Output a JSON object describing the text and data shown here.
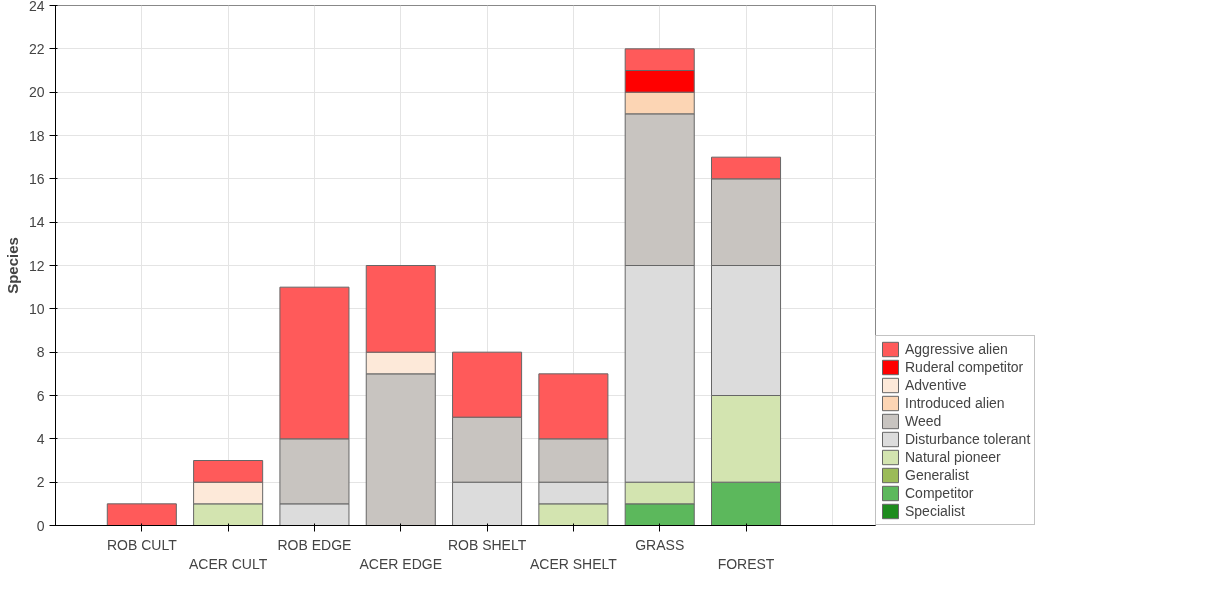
{
  "chart_data": {
    "type": "bar",
    "stacked": true,
    "ylabel": "Species",
    "categories": [
      "ROB CULT",
      "ACER CULT",
      "ROB EDGE",
      "ACER EDGE",
      "ROB SHELT",
      "ACER SHELT",
      "GRASS",
      "FOREST"
    ],
    "ylim": [
      0,
      24
    ],
    "yticks": [
      0,
      2,
      4,
      6,
      8,
      10,
      12,
      14,
      16,
      18,
      20,
      22,
      24
    ],
    "grid": true,
    "legend": "bottom right",
    "series": [
      {
        "name": "Specialist",
        "color": "#1e8c1e",
        "values": [
          0,
          0,
          0,
          0,
          0,
          0,
          0,
          0
        ]
      },
      {
        "name": "Competitor",
        "color": "#5cb85c",
        "values": [
          0,
          0,
          0,
          0,
          0,
          0,
          1,
          2
        ]
      },
      {
        "name": "Generalist",
        "color": "#9bbb59",
        "values": [
          0,
          0,
          0,
          0,
          0,
          0,
          0,
          0
        ]
      },
      {
        "name": "Natural pioneer",
        "color": "#d3e4b0",
        "values": [
          0,
          1,
          0,
          0,
          0,
          1,
          1,
          4
        ]
      },
      {
        "name": "Disturbance tolerant",
        "color": "#dcdcdc",
        "values": [
          0,
          0,
          1,
          0,
          2,
          1,
          10,
          6
        ]
      },
      {
        "name": "Weed",
        "color": "#c8c4c0",
        "values": [
          0,
          0,
          3,
          7,
          3,
          2,
          7,
          4
        ]
      },
      {
        "name": "Introduced alien",
        "color": "#fcd5b4",
        "values": [
          0,
          0,
          0,
          0,
          0,
          0,
          1,
          0
        ]
      },
      {
        "name": "Adventive",
        "color": "#fde9d9",
        "values": [
          0,
          1,
          0,
          1,
          0,
          0,
          0,
          0
        ]
      },
      {
        "name": "Ruderal competitor",
        "color": "#ff0000",
        "values": [
          0,
          0,
          0,
          0,
          0,
          0,
          1,
          0
        ]
      },
      {
        "name": "Aggressive alien",
        "color": "#ff5a5a",
        "values": [
          1,
          1,
          7,
          4,
          3,
          3,
          1,
          1
        ]
      }
    ]
  }
}
